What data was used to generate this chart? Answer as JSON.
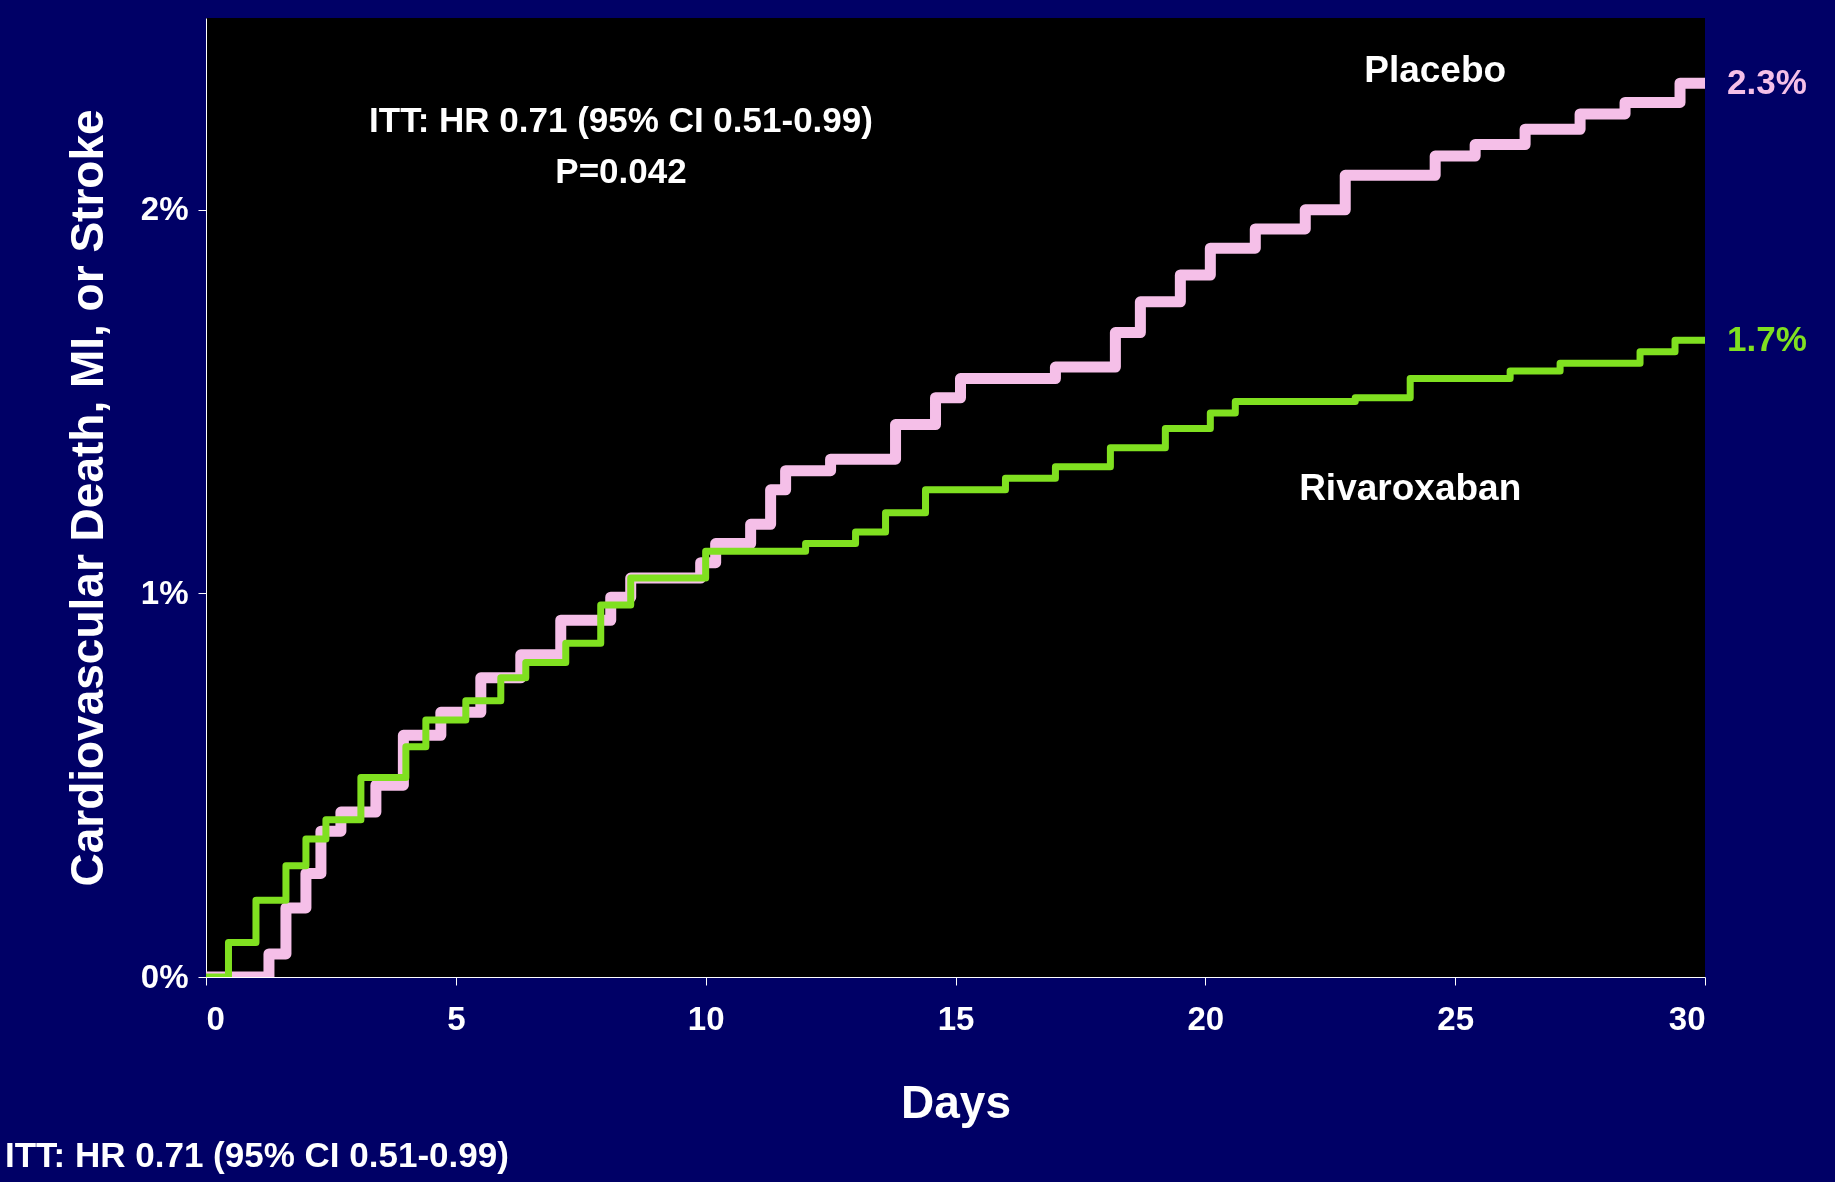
{
  "chart_data": {
    "type": "step",
    "xlabel": "Days",
    "ylabel": "Cardiovascular Death, MI, or Stroke",
    "xlim": [
      0,
      30
    ],
    "xticks": [
      0,
      5,
      10,
      15,
      20,
      25,
      30
    ],
    "ylim": [
      0,
      2.5
    ],
    "yticks": [
      {
        "value": 0,
        "label": "0%"
      },
      {
        "value": 1,
        "label": "1%"
      },
      {
        "value": 2,
        "label": "2%"
      }
    ],
    "grid": false,
    "marker": "none",
    "line_style": "solid",
    "series": [
      {
        "name": "Placebo",
        "color": "#f5bfe8",
        "x": [
          0,
          0.45,
          1.26,
          1.6,
          2.0,
          2.3,
          2.7,
          3.4,
          3.95,
          4.7,
          5.5,
          6.3,
          7.1,
          8.1,
          8.5,
          9.9,
          10.2,
          10.9,
          11.3,
          11.6,
          12.5,
          13.8,
          14.6,
          15.1,
          17.0,
          18.2,
          18.7,
          19.5,
          20.1,
          21.0,
          22.0,
          22.8,
          24.6,
          25.4,
          26.4,
          27.5,
          28.4,
          29.5,
          30
        ],
        "values": [
          0,
          0,
          0.06,
          0.18,
          0.27,
          0.38,
          0.43,
          0.5,
          0.63,
          0.69,
          0.78,
          0.84,
          0.93,
          0.99,
          1.04,
          1.08,
          1.13,
          1.18,
          1.27,
          1.32,
          1.35,
          1.44,
          1.51,
          1.56,
          1.59,
          1.68,
          1.76,
          1.83,
          1.9,
          1.95,
          2.0,
          2.09,
          2.14,
          2.17,
          2.21,
          2.25,
          2.28,
          2.33,
          2.33
        ]
      },
      {
        "name": "Rivaroxaban",
        "color": "#80e020",
        "x": [
          0,
          0.45,
          1.0,
          1.6,
          2.0,
          2.4,
          3.1,
          4.0,
          4.4,
          5.2,
          5.9,
          6.4,
          7.2,
          7.9,
          8.5,
          10.0,
          12.0,
          13.0,
          13.6,
          14.4,
          16.0,
          17.0,
          18.1,
          19.2,
          20.1,
          20.6,
          23.0,
          24.1,
          26.1,
          27.1,
          28.7,
          29.4,
          30
        ],
        "values": [
          0,
          0.09,
          0.2,
          0.29,
          0.36,
          0.41,
          0.52,
          0.6,
          0.67,
          0.72,
          0.78,
          0.82,
          0.87,
          0.97,
          1.04,
          1.11,
          1.13,
          1.16,
          1.21,
          1.27,
          1.3,
          1.33,
          1.38,
          1.43,
          1.47,
          1.5,
          1.51,
          1.56,
          1.58,
          1.6,
          1.63,
          1.66,
          1.66
        ]
      }
    ],
    "annotations": [
      "ITT: HR 0.71 (95% CI 0.51-0.99)",
      "P=0.042",
      {
        "text": "2.3%",
        "x": 30,
        "y": 2.33
      },
      {
        "text": "1.7%",
        "x": 30,
        "y": 1.66
      },
      "ITT: HR 0.71 (95% CI 0.51-0.99)"
    ]
  }
}
